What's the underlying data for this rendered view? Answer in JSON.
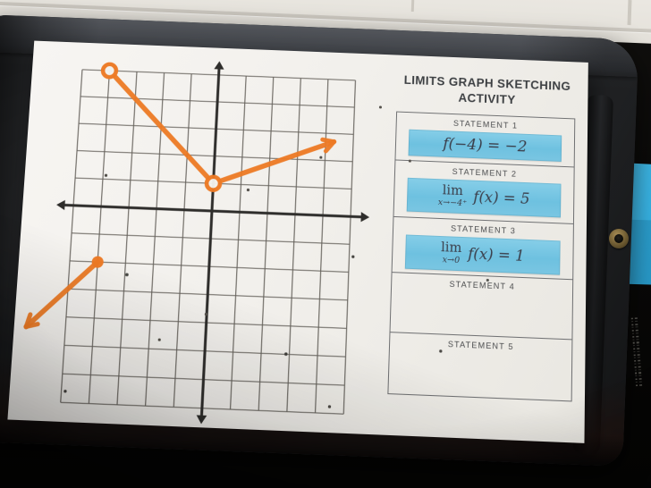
{
  "scene": {
    "wall_color": "#e9e6e0",
    "desk_color": "#0a0908",
    "clipboard_color": "#2c2e31",
    "sticky_note_colors": [
      "#3cb9e9",
      "#2da3d4"
    ],
    "grommet_color": "#8a7242"
  },
  "worksheet": {
    "title_line1": "LIMITS GRAPH SKETCHING",
    "title_line2": "ACTIVITY",
    "card_blue": "#74c4e2",
    "statements": [
      {
        "label": "STATEMENT 1",
        "card": {
          "text": "f(−4) = −2"
        }
      },
      {
        "label": "STATEMENT 2",
        "card": {
          "lim": "lim",
          "sub": "x→−4⁺",
          "expr": "f(x) = 5"
        }
      },
      {
        "label": "STATEMENT 3",
        "card": {
          "lim": "lim",
          "sub": "x→0",
          "expr": "f(x) = 1"
        }
      },
      {
        "label": "STATEMENT 4"
      },
      {
        "label": "STATEMENT 5"
      }
    ]
  },
  "chart_data": {
    "type": "piecewise-line",
    "title": "",
    "xlabel": "",
    "ylabel": "",
    "x_range": [
      -5,
      5
    ],
    "y_range": [
      -7,
      5
    ],
    "grid_step": 1,
    "grid_on": true,
    "axes_through_origin": true,
    "stroke_color": "#ed7a24",
    "grid_color": "#57534d",
    "axis_color": "#2e2d2b",
    "paper_color": "#f3f1ed",
    "segments": [
      {
        "from": [
          -6.4,
          -4.4
        ],
        "to": [
          -4,
          -2
        ],
        "start": "arrow",
        "end": "closed-dot"
      },
      {
        "from": [
          -4,
          5
        ],
        "to": [
          0,
          1
        ],
        "start": "open-circle",
        "end": "open-circle"
      },
      {
        "from": [
          0,
          1
        ],
        "to": [
          4.3,
          2.7
        ],
        "start": "open-circle",
        "end": "arrow"
      }
    ],
    "points": [
      {
        "x": -4,
        "y": -2,
        "type": "closed"
      },
      {
        "x": -4,
        "y": 5,
        "type": "open"
      },
      {
        "x": 0,
        "y": 1,
        "type": "open"
      }
    ]
  }
}
